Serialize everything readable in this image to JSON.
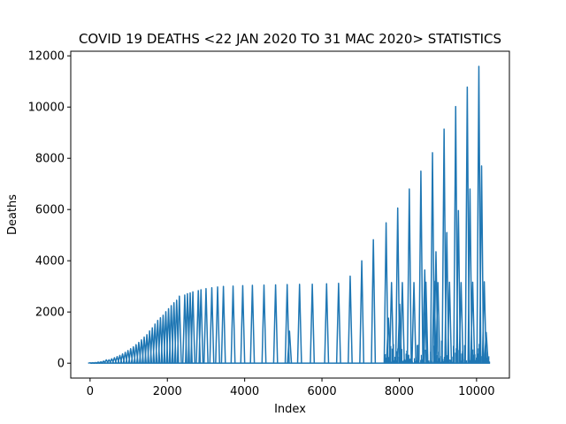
{
  "chart_data": {
    "type": "line",
    "title": "COVID 19 DEATHS <22 JAN 2020 TO 31 MAC 2020> STATISTICS",
    "xlabel": "Index",
    "ylabel": "Deaths",
    "xlim": [
      -500,
      10850
    ],
    "ylim": [
      -580,
      12180
    ],
    "xticks": [
      0,
      2000,
      4000,
      6000,
      8000,
      10000
    ],
    "yticks": [
      0,
      2000,
      4000,
      6000,
      8000,
      10000,
      12000
    ],
    "xtick_labels": [
      "0",
      "2000",
      "4000",
      "6000",
      "8000",
      "10000"
    ],
    "ytick_labels": [
      "0",
      "2000",
      "4000",
      "6000",
      "8000",
      "10000",
      "12000"
    ],
    "grid": false,
    "legend": "none",
    "series": [
      {
        "color": "#1f77b4",
        "n_points": 10350,
        "peaks": [
          {
            "x": 0,
            "y": 17
          },
          {
            "x": 70,
            "y": 18
          },
          {
            "x": 140,
            "y": 26
          },
          {
            "x": 210,
            "y": 42
          },
          {
            "x": 280,
            "y": 56
          },
          {
            "x": 350,
            "y": 82
          },
          {
            "x": 420,
            "y": 131
          },
          {
            "x": 490,
            "y": 133
          },
          {
            "x": 560,
            "y": 171
          },
          {
            "x": 630,
            "y": 213
          },
          {
            "x": 700,
            "y": 259
          },
          {
            "x": 770,
            "y": 304
          },
          {
            "x": 840,
            "y": 362
          },
          {
            "x": 910,
            "y": 426
          },
          {
            "x": 980,
            "y": 492
          },
          {
            "x": 1050,
            "y": 565
          },
          {
            "x": 1120,
            "y": 638
          },
          {
            "x": 1190,
            "y": 724
          },
          {
            "x": 1260,
            "y": 813
          },
          {
            "x": 1330,
            "y": 910
          },
          {
            "x": 1400,
            "y": 1018
          },
          {
            "x": 1470,
            "y": 1115
          },
          {
            "x": 1540,
            "y": 1261
          },
          {
            "x": 1610,
            "y": 1383
          },
          {
            "x": 1680,
            "y": 1526
          },
          {
            "x": 1750,
            "y": 1669
          },
          {
            "x": 1820,
            "y": 1775
          },
          {
            "x": 1890,
            "y": 1873
          },
          {
            "x": 1960,
            "y": 2009
          },
          {
            "x": 2030,
            "y": 2126
          },
          {
            "x": 2100,
            "y": 2247
          },
          {
            "x": 2170,
            "y": 2360
          },
          {
            "x": 2240,
            "y": 2460
          },
          {
            "x": 2310,
            "y": 2618
          },
          {
            "x": 2450,
            "y": 2663
          },
          {
            "x": 2520,
            "y": 2715
          },
          {
            "x": 2590,
            "y": 2744
          },
          {
            "x": 2660,
            "y": 2788
          },
          {
            "x": 2800,
            "y": 2835
          },
          {
            "x": 2870,
            "y": 2870
          },
          {
            "x": 3000,
            "y": 2912
          },
          {
            "x": 3150,
            "y": 2946
          },
          {
            "x": 3300,
            "y": 2978
          },
          {
            "x": 3450,
            "y": 3000
          },
          {
            "x": 3700,
            "y": 3012
          },
          {
            "x": 3950,
            "y": 3030
          },
          {
            "x": 4200,
            "y": 3040
          },
          {
            "x": 4500,
            "y": 3050
          },
          {
            "x": 4800,
            "y": 3060
          },
          {
            "x": 5100,
            "y": 3070
          },
          {
            "x": 5160,
            "y": 1250
          },
          {
            "x": 5420,
            "y": 3080
          },
          {
            "x": 5750,
            "y": 3085
          },
          {
            "x": 6120,
            "y": 3100
          },
          {
            "x": 6430,
            "y": 3120
          },
          {
            "x": 6730,
            "y": 3400
          },
          {
            "x": 7030,
            "y": 4000
          },
          {
            "x": 7330,
            "y": 4820
          },
          {
            "x": 7660,
            "y": 5480
          },
          {
            "x": 7720,
            "y": 1760
          },
          {
            "x": 7800,
            "y": 3150
          },
          {
            "x": 7960,
            "y": 6060
          },
          {
            "x": 8010,
            "y": 2300
          },
          {
            "x": 8080,
            "y": 3150
          },
          {
            "x": 8260,
            "y": 6800
          },
          {
            "x": 8380,
            "y": 3150
          },
          {
            "x": 8560,
            "y": 7500
          },
          {
            "x": 8660,
            "y": 3640
          },
          {
            "x": 8690,
            "y": 3160
          },
          {
            "x": 8860,
            "y": 8220
          },
          {
            "x": 8900,
            "y": 3200
          },
          {
            "x": 8950,
            "y": 4350
          },
          {
            "x": 9000,
            "y": 3150
          },
          {
            "x": 9160,
            "y": 9140
          },
          {
            "x": 9230,
            "y": 5100
          },
          {
            "x": 9300,
            "y": 3160
          },
          {
            "x": 9460,
            "y": 10020
          },
          {
            "x": 9530,
            "y": 5960
          },
          {
            "x": 9600,
            "y": 3150
          },
          {
            "x": 9760,
            "y": 10780
          },
          {
            "x": 9830,
            "y": 6800
          },
          {
            "x": 9900,
            "y": 3160
          },
          {
            "x": 10060,
            "y": 11590
          },
          {
            "x": 10130,
            "y": 7700
          },
          {
            "x": 10200,
            "y": 3180
          },
          {
            "x": 10250,
            "y": 1200
          }
        ]
      }
    ]
  }
}
